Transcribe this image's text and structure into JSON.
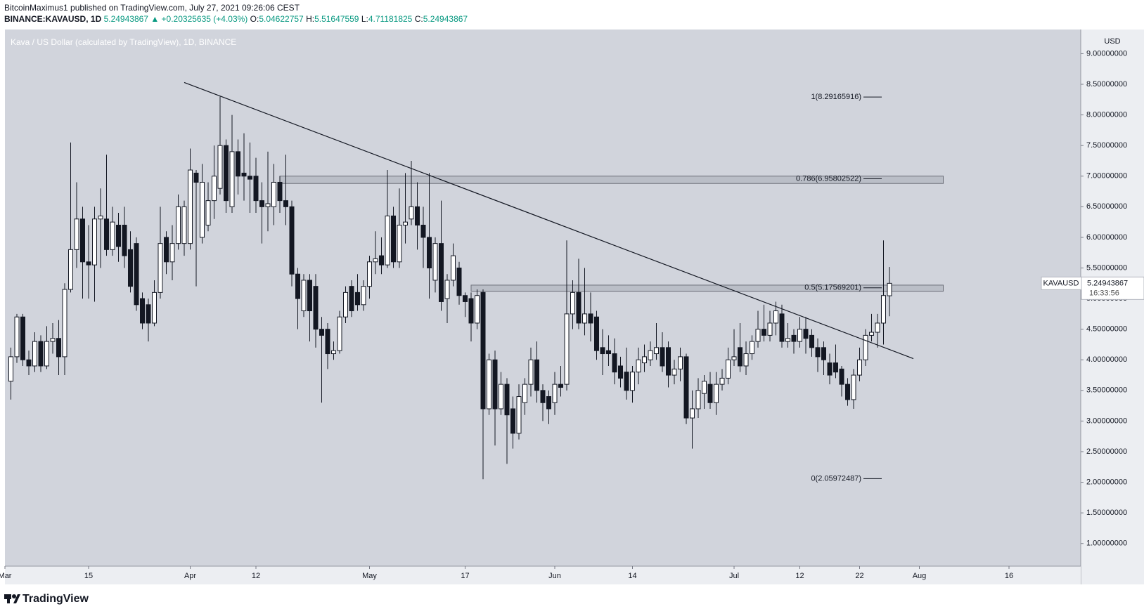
{
  "header": {
    "byline": "BitcoinMaximus1 published on TradingView.com, July 27, 2021 09:26:06 CEST",
    "symbol": "BINANCE:KAVAUSD, 1D",
    "last": "5.24943867",
    "change": "▲ +0.20325635 (+4.03%)",
    "ohlc": [
      {
        "label": "O:",
        "value": "5.04622757"
      },
      {
        "label": "H:",
        "value": "5.51647559"
      },
      {
        "label": "L:",
        "value": "4.71181825"
      },
      {
        "label": "C:",
        "value": "5.24943867"
      }
    ]
  },
  "footer": "TradingView",
  "chart_data": {
    "type": "candlestick",
    "title": "Kava / US Dollar (calculated by TradingView), 1D, BINANCE",
    "y_axis_label": "USD",
    "up_color": "#ffffff",
    "down_color": "#131722",
    "grid": false,
    "x": [
      "03-02",
      "03-03",
      "03-04",
      "03-05",
      "03-06",
      "03-07",
      "03-08",
      "03-09",
      "03-10",
      "03-11",
      "03-12",
      "03-13",
      "03-14",
      "03-15",
      "03-16",
      "03-17",
      "03-18",
      "03-19",
      "03-20",
      "03-21",
      "03-22",
      "03-23",
      "03-24",
      "03-25",
      "03-26",
      "03-27",
      "03-28",
      "03-29",
      "03-30",
      "03-31",
      "04-01",
      "04-02",
      "04-03",
      "04-04",
      "04-05",
      "04-06",
      "04-07",
      "04-08",
      "04-09",
      "04-10",
      "04-11",
      "04-12",
      "04-13",
      "04-14",
      "04-15",
      "04-16",
      "04-17",
      "04-18",
      "04-19",
      "04-20",
      "04-21",
      "04-22",
      "04-23",
      "04-24",
      "04-25",
      "04-26",
      "04-27",
      "04-28",
      "04-29",
      "04-30",
      "05-01",
      "05-02",
      "05-03",
      "05-04",
      "05-05",
      "05-06",
      "05-07",
      "05-08",
      "05-09",
      "05-10",
      "05-11",
      "05-12",
      "05-13",
      "05-14",
      "05-15",
      "05-16",
      "05-17",
      "05-18",
      "05-19",
      "05-20",
      "05-21",
      "05-22",
      "05-23",
      "05-24",
      "05-25",
      "05-26",
      "05-27",
      "05-28",
      "05-29",
      "05-30",
      "05-31",
      "06-01",
      "06-02",
      "06-03",
      "06-04",
      "06-05",
      "06-06",
      "06-07",
      "06-08",
      "06-09",
      "06-10",
      "06-11",
      "06-12",
      "06-13",
      "06-14",
      "06-15",
      "06-16",
      "06-17",
      "06-18",
      "06-19",
      "06-20",
      "06-21",
      "06-22",
      "06-23",
      "06-24",
      "06-25",
      "06-26",
      "06-27",
      "06-28",
      "06-29",
      "06-30",
      "07-01",
      "07-02",
      "07-03",
      "07-04",
      "07-05",
      "07-06",
      "07-07",
      "07-08",
      "07-09",
      "07-10",
      "07-11",
      "07-12",
      "07-13",
      "07-14",
      "07-15",
      "07-16",
      "07-17",
      "07-18",
      "07-19",
      "07-20",
      "07-21",
      "07-22",
      "07-23",
      "07-24",
      "07-25",
      "07-26",
      "07-27"
    ],
    "open": [
      3.65,
      4.05,
      4.7,
      4.0,
      3.9,
      4.3,
      3.9,
      4.3,
      4.35,
      4.05,
      5.15,
      5.8,
      6.3,
      5.6,
      5.55,
      6.3,
      6.3,
      5.8,
      6.2,
      6.2,
      5.8,
      5.9,
      5.0,
      4.9,
      4.6,
      5.1,
      6.0,
      5.6,
      5.9,
      5.9,
      5.9,
      7.05,
      6.0,
      6.2,
      6.6,
      6.8,
      7.5,
      6.5,
      7.4,
      7.05,
      7.0,
      7.0,
      6.6,
      6.5,
      6.5,
      6.9,
      6.6,
      6.5,
      5.4,
      4.8,
      5.3,
      5.2,
      4.5,
      4.5,
      4.1,
      4.15,
      4.7,
      5.2,
      5.1,
      4.9,
      5.2,
      5.6,
      5.7,
      5.55,
      6.35,
      5.6,
      6.2,
      6.3,
      6.5,
      6.2,
      6.0,
      5.3,
      5.9,
      5.0,
      5.3,
      5.5,
      5.05,
      5.0,
      4.6,
      5.1,
      3.2,
      4.0,
      3.2,
      3.6,
      3.2,
      2.8,
      3.3,
      3.6,
      4.0,
      3.5,
      3.4,
      3.3,
      3.6,
      3.6,
      4.75,
      5.1,
      4.6,
      4.75,
      4.7,
      4.2,
      4.15,
      4.1,
      3.9,
      3.8,
      3.5,
      3.8,
      3.95,
      4.0,
      4.1,
      4.2,
      4.2,
      3.75,
      3.85,
      4.05,
      3.05,
      3.2,
      3.45,
      3.6,
      3.3,
      3.6,
      3.7,
      4.0,
      4.2,
      3.9,
      4.1,
      4.3,
      4.5,
      4.4,
      4.6,
      4.75,
      4.3,
      4.4,
      4.3,
      4.5,
      4.4,
      4.2,
      4.2,
      3.95,
      3.95,
      3.85,
      3.6,
      3.35,
      3.75,
      4.0,
      4.4,
      4.45,
      4.6,
      5.04622757
    ],
    "high": [
      4.2,
      4.75,
      4.75,
      4.15,
      4.45,
      4.4,
      4.55,
      4.6,
      4.65,
      5.25,
      7.55,
      6.9,
      6.5,
      6.2,
      6.5,
      6.8,
      7.35,
      6.5,
      6.4,
      6.5,
      6.1,
      6.0,
      5.1,
      5.0,
      5.3,
      6.5,
      6.1,
      6.2,
      6.7,
      6.6,
      7.45,
      7.1,
      7.2,
      6.9,
      7.5,
      8.3,
      7.6,
      8.0,
      7.6,
      7.7,
      7.55,
      7.3,
      6.9,
      7.4,
      7.2,
      7.0,
      7.35,
      6.6,
      5.5,
      5.4,
      5.4,
      5.4,
      4.7,
      4.6,
      4.3,
      4.8,
      5.2,
      5.3,
      5.4,
      5.3,
      5.7,
      6.1,
      6.0,
      7.1,
      6.5,
      6.8,
      7.05,
      7.25,
      6.9,
      6.5,
      7.05,
      6.0,
      6.6,
      5.4,
      5.9,
      5.6,
      5.1,
      5.1,
      5.15,
      5.15,
      4.1,
      4.15,
      3.8,
      3.7,
      3.4,
      3.6,
      3.7,
      4.2,
      4.3,
      3.6,
      3.5,
      3.8,
      3.9,
      5.95,
      5.3,
      5.65,
      5.5,
      5.1,
      4.8,
      4.5,
      4.4,
      4.35,
      4.05,
      4.2,
      3.9,
      4.2,
      4.25,
      4.3,
      4.6,
      4.45,
      4.3,
      4.0,
      4.2,
      4.1,
      3.5,
      3.7,
      3.75,
      3.8,
      3.8,
      3.85,
      4.2,
      4.5,
      4.6,
      4.3,
      4.4,
      4.8,
      4.9,
      4.8,
      4.95,
      4.9,
      4.6,
      4.5,
      4.7,
      4.7,
      4.5,
      4.35,
      4.3,
      4.1,
      4.25,
      3.9,
      3.7,
      3.85,
      4.2,
      4.5,
      4.75,
      4.75,
      5.95,
      5.51647559
    ],
    "low": [
      3.35,
      3.95,
      3.9,
      3.75,
      3.8,
      3.8,
      3.85,
      4.1,
      3.75,
      3.75,
      5.1,
      5.5,
      5.0,
      5.0,
      4.95,
      5.5,
      5.7,
      5.7,
      5.6,
      5.5,
      5.1,
      4.8,
      4.5,
      4.3,
      4.55,
      5.0,
      5.4,
      5.3,
      5.8,
      5.7,
      5.8,
      5.2,
      5.9,
      6.1,
      6.3,
      6.7,
      6.4,
      6.4,
      6.7,
      6.6,
      6.4,
      6.4,
      5.9,
      6.1,
      6.2,
      6.4,
      6.2,
      5.2,
      4.5,
      4.7,
      4.3,
      4.2,
      3.3,
      3.85,
      4.0,
      4.1,
      4.6,
      4.7,
      4.8,
      4.8,
      5.0,
      5.4,
      5.4,
      5.5,
      5.5,
      5.5,
      5.9,
      6.2,
      5.8,
      5.5,
      5.0,
      5.1,
      4.8,
      4.6,
      5.2,
      4.9,
      4.7,
      4.3,
      4.5,
      2.05,
      3.1,
      2.6,
      3.1,
      2.3,
      2.55,
      2.7,
      3.1,
      3.4,
      3.3,
      3.0,
      2.95,
      3.1,
      3.4,
      3.5,
      4.5,
      4.5,
      4.4,
      4.3,
      4.0,
      3.75,
      3.9,
      3.6,
      3.55,
      3.35,
      3.3,
      3.6,
      3.8,
      3.9,
      4.0,
      3.8,
      3.55,
      3.6,
      3.65,
      2.95,
      2.55,
      3.05,
      3.2,
      3.2,
      3.1,
      3.5,
      3.6,
      3.9,
      3.8,
      3.75,
      4.0,
      4.2,
      4.3,
      4.3,
      4.4,
      4.2,
      4.2,
      4.1,
      4.2,
      4.1,
      4.05,
      3.8,
      3.75,
      3.6,
      3.7,
      3.4,
      3.25,
      3.2,
      3.65,
      3.9,
      4.3,
      4.2,
      4.25,
      4.71181825
    ],
    "close": [
      4.05,
      4.7,
      4.0,
      3.9,
      4.3,
      3.9,
      4.3,
      4.35,
      4.05,
      5.15,
      5.8,
      6.3,
      5.6,
      5.55,
      6.3,
      6.35,
      5.8,
      6.25,
      5.85,
      5.7,
      5.2,
      4.9,
      4.6,
      4.6,
      5.1,
      5.9,
      5.6,
      5.9,
      6.5,
      6.5,
      7.1,
      6.9,
      6.9,
      6.6,
      7.0,
      7.5,
      6.6,
      7.4,
      7.0,
      7.0,
      6.95,
      6.6,
      6.5,
      6.55,
      6.9,
      6.6,
      6.5,
      5.4,
      5.0,
      5.3,
      4.8,
      4.5,
      4.4,
      4.1,
      4.15,
      4.7,
      5.1,
      4.8,
      4.9,
      5.2,
      5.6,
      5.65,
      5.55,
      6.35,
      5.6,
      6.2,
      6.25,
      6.5,
      6.2,
      6.0,
      5.5,
      5.9,
      4.95,
      5.3,
      5.7,
      5.05,
      4.95,
      4.6,
      5.05,
      3.2,
      4.0,
      3.2,
      3.6,
      3.1,
      2.8,
      3.4,
      3.6,
      4.0,
      3.5,
      3.3,
      3.2,
      3.6,
      3.55,
      4.75,
      5.1,
      4.6,
      4.75,
      4.6,
      4.15,
      4.1,
      4.1,
      3.8,
      3.7,
      3.5,
      3.8,
      4.0,
      4.05,
      4.15,
      4.2,
      3.9,
      3.75,
      3.85,
      4.05,
      3.05,
      3.2,
      3.5,
      3.65,
      3.3,
      3.6,
      3.7,
      4.0,
      4.05,
      3.9,
      4.1,
      4.3,
      4.5,
      4.4,
      4.6,
      4.8,
      4.3,
      4.35,
      4.3,
      4.5,
      4.35,
      4.2,
      4.05,
      4.0,
      3.75,
      3.8,
      3.6,
      3.35,
      3.75,
      4.0,
      4.4,
      4.45,
      4.6,
      5.05,
      5.24943867
    ],
    "xlim": [
      "03-01",
      "08-28"
    ],
    "xticks": [
      {
        "value": "03-01",
        "label": "Mar"
      },
      {
        "value": "03-15",
        "label": "15"
      },
      {
        "value": "04-01",
        "label": "Apr"
      },
      {
        "value": "04-12",
        "label": "12"
      },
      {
        "value": "05-01",
        "label": "May"
      },
      {
        "value": "05-17",
        "label": "17"
      },
      {
        "value": "06-01",
        "label": "Jun"
      },
      {
        "value": "06-14",
        "label": "14"
      },
      {
        "value": "07-01",
        "label": "Jul"
      },
      {
        "value": "07-12",
        "label": "12"
      },
      {
        "value": "07-22",
        "label": "22"
      },
      {
        "value": "08-01",
        "label": "Aug"
      },
      {
        "value": "08-16",
        "label": "16"
      }
    ],
    "ylim": [
      0.63,
      9.395
    ],
    "yticks": [
      {
        "value": 1,
        "label": "1.00000000"
      },
      {
        "value": 1.5,
        "label": "1.50000000"
      },
      {
        "value": 2,
        "label": "2.00000000"
      },
      {
        "value": 2.5,
        "label": "2.50000000"
      },
      {
        "value": 3,
        "label": "3.00000000"
      },
      {
        "value": 3.5,
        "label": "3.50000000"
      },
      {
        "value": 4,
        "label": "4.00000000"
      },
      {
        "value": 4.5,
        "label": "4.50000000"
      },
      {
        "value": 5,
        "label": "5.00000000"
      },
      {
        "value": 5.5,
        "label": "5.50000000"
      },
      {
        "value": 6,
        "label": "6.00000000"
      },
      {
        "value": 6.5,
        "label": "6.50000000"
      },
      {
        "value": 7,
        "label": "7.00000000"
      },
      {
        "value": 7.5,
        "label": "7.50000000"
      },
      {
        "value": 8,
        "label": "8.00000000"
      },
      {
        "value": 8.5,
        "label": "8.50000000"
      },
      {
        "value": 9,
        "label": "9.00000000"
      }
    ],
    "fib_levels": [
      {
        "value": 8.29165916,
        "label": "1(8.29165916)"
      },
      {
        "value": 6.95802522,
        "label": "0.786(6.95802522)"
      },
      {
        "value": 5.17569201,
        "label": "0.5(5.17569201)"
      },
      {
        "value": 2.05972487,
        "label": "0(2.05972487)"
      }
    ],
    "zones": [
      {
        "from": "04-16",
        "to": "08-05",
        "low": 6.88,
        "high": 7.0
      },
      {
        "from": "05-18",
        "to": "08-05",
        "low": 5.12,
        "high": 5.22
      }
    ],
    "trendline": {
      "x": [
        "03-31",
        "07-31"
      ],
      "values": [
        8.53,
        4.02
      ]
    },
    "last_price": {
      "symbol": "KAVAUSD",
      "value": 5.24943867,
      "countdown": "16:33:56"
    }
  }
}
